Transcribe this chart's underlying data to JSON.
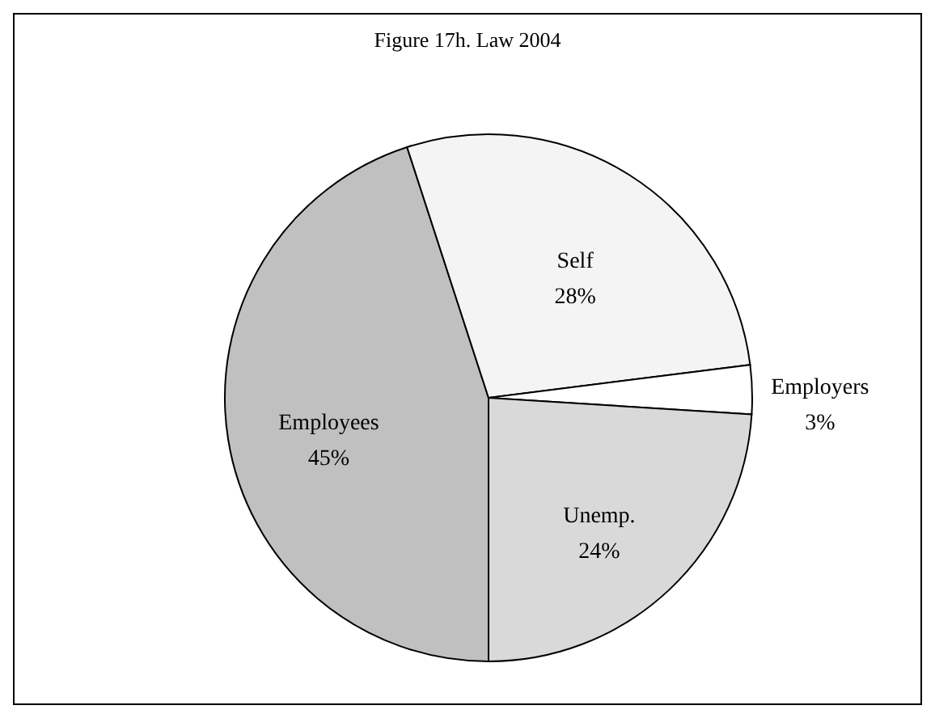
{
  "chart_data": {
    "type": "pie",
    "title": "Figure 17h. Law 2004",
    "categories": [
      "Employees",
      "Self",
      "Employers",
      "Unemp."
    ],
    "values": [
      45,
      28,
      3,
      24
    ],
    "value_labels": [
      "45%",
      "28%",
      "3%",
      "24%"
    ],
    "colors": [
      "#c0c0c0",
      "#f4f4f4",
      "#ffffff",
      "#d9d9d9"
    ],
    "legend": false
  }
}
